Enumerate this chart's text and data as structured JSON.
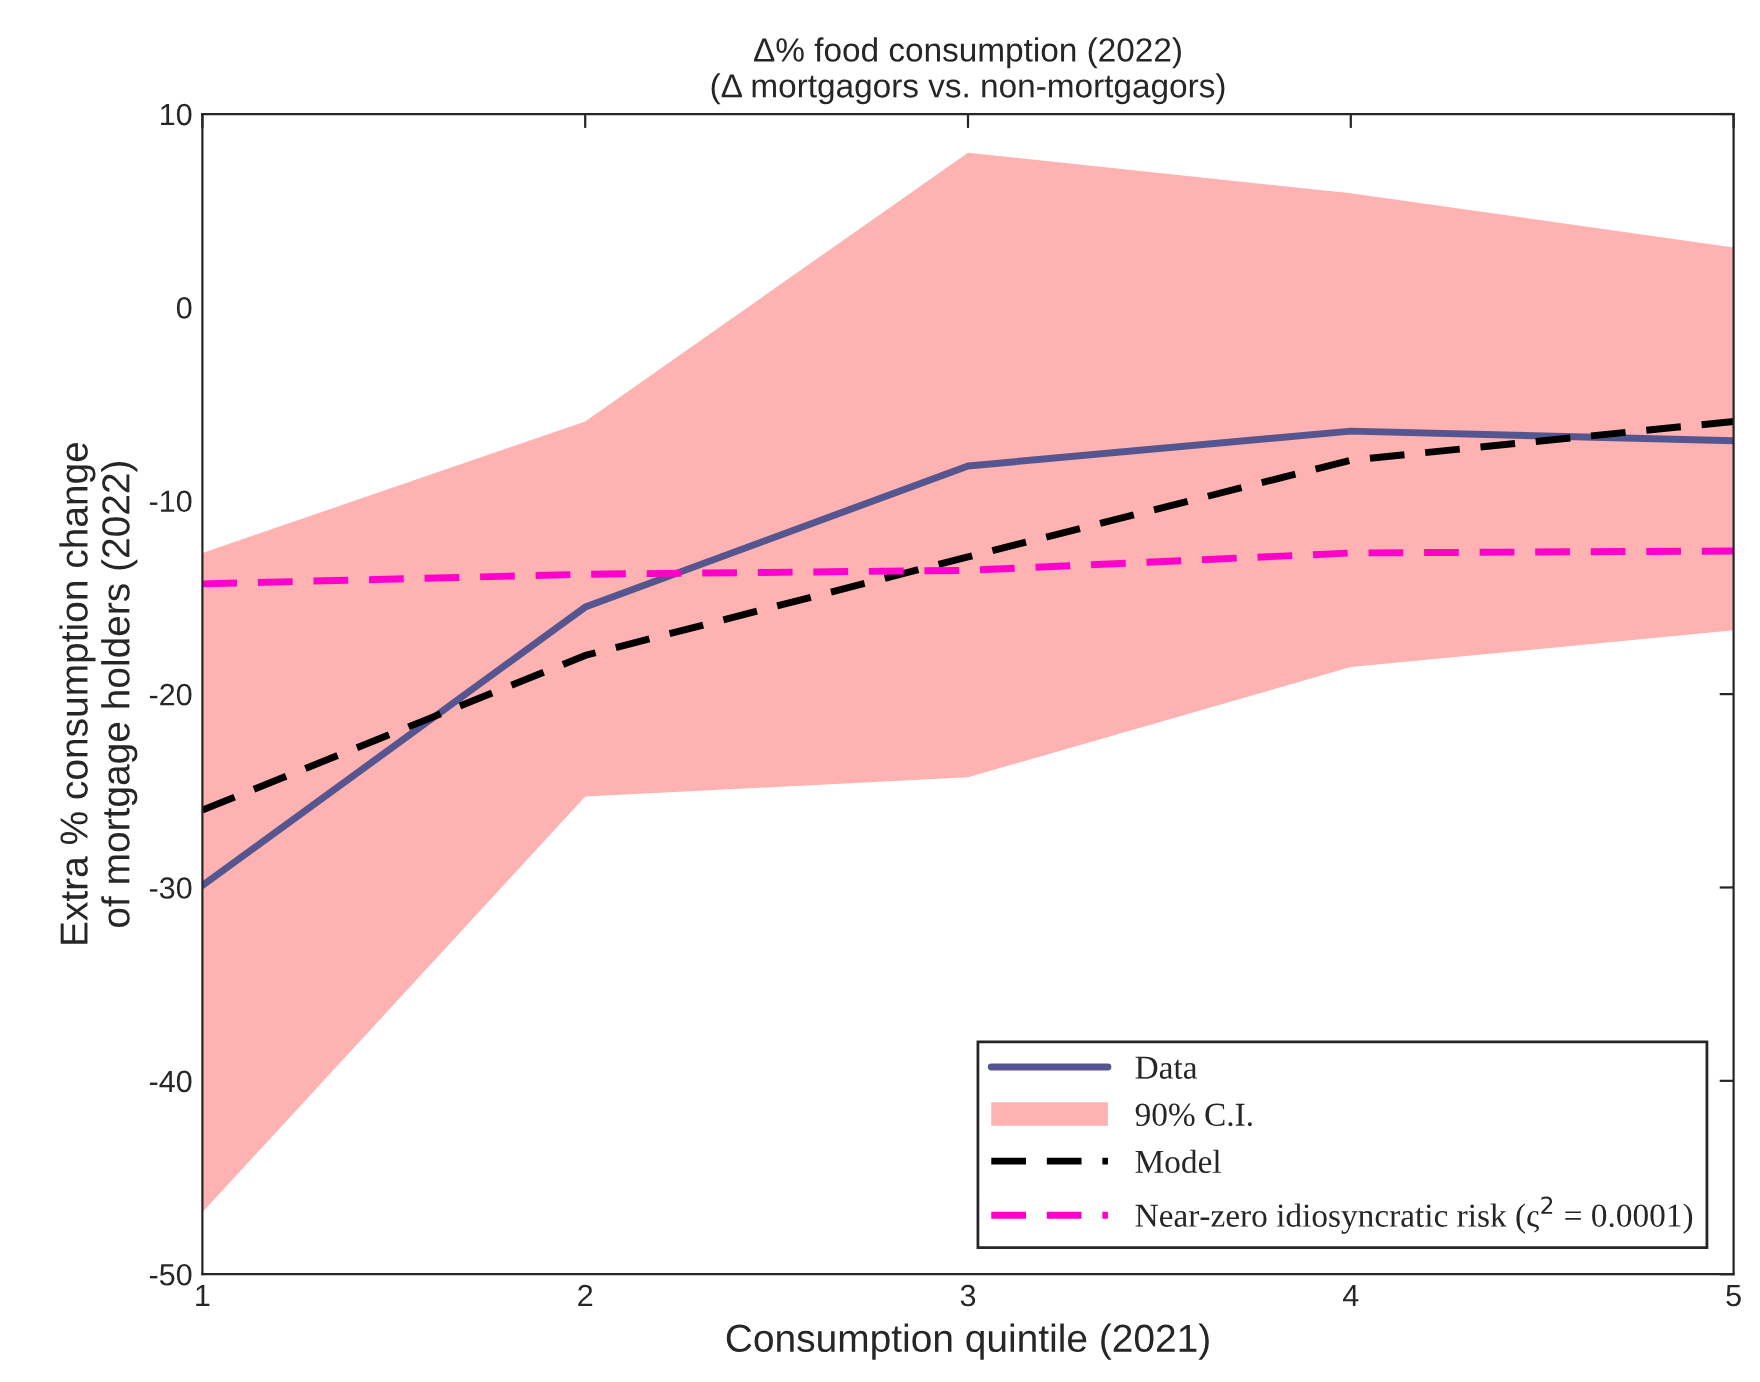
{
  "chart_data": {
    "type": "line",
    "title": "Δ% food consumption (2022)\n(Δ mortgagors vs. non-mortgagors)",
    "xlabel": "Consumption quintile (2021)",
    "ylabel": "Extra % consumption change\nof mortgage holders (2022)",
    "x": [
      1,
      2,
      3,
      4,
      5
    ],
    "series": [
      {
        "name": "Data",
        "color": "#55558f",
        "line_style": "solid",
        "values": [
          -29.9,
          -15.5,
          -8.2,
          -6.4,
          -6.9
        ]
      },
      {
        "name": "90% C.I.",
        "type": "area",
        "color": "#ffb2b2",
        "values": [
          null,
          null,
          null,
          null,
          null
        ],
        "lower": [
          -46.8,
          -25.3,
          -24.3,
          -18.6,
          -16.7
        ],
        "upper": [
          -12.7,
          -5.9,
          8.0,
          5.9,
          3.1
        ]
      },
      {
        "name": "Model",
        "color": "#000000",
        "line_style": "dashed",
        "values": [
          -26.0,
          -18.0,
          -12.9,
          -7.9,
          -5.9
        ]
      },
      {
        "name": "Near-zero idiosyncratic risk (ς$^{2}$ = 0.0001)",
        "color": "#ff00cc",
        "line_style": "dashed",
        "values": [
          -14.3,
          -13.8,
          -13.6,
          -12.7,
          -12.6
        ]
      }
    ],
    "xlim": [
      1,
      5
    ],
    "xticks": [
      1,
      2,
      3,
      4,
      5
    ],
    "ylim": [
      -50,
      10
    ],
    "yticks": [
      -50,
      -40,
      -30,
      -20,
      -10,
      0,
      10
    ],
    "grid": false,
    "legend": "bottom right",
    "marker": "none"
  }
}
